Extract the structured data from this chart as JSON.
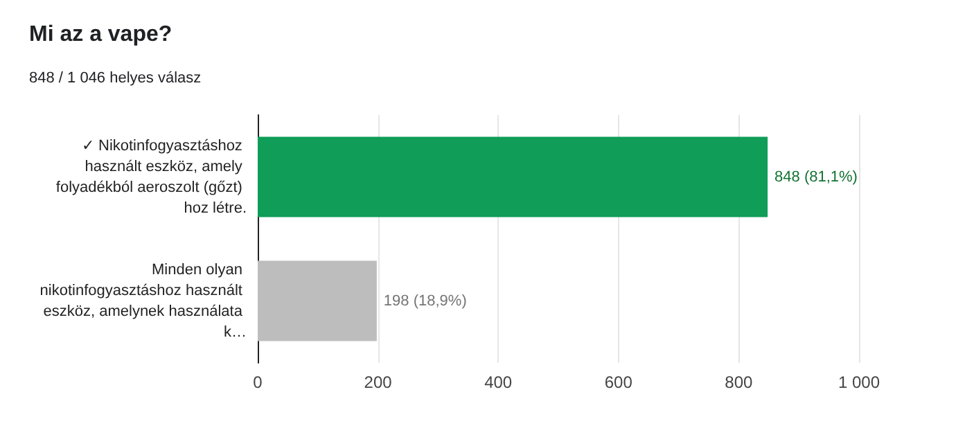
{
  "chart_data": {
    "type": "bar",
    "orientation": "horizontal",
    "title": "Mi az a vape?",
    "subtitle": "848 / 1 046 helyes válasz",
    "categories": [
      "✓ Nikotinfogyasztáshoz használt eszköz, amely folyadékból aeroszolt (gőzt) hoz létre.",
      "Minden olyan nikotinfogyasztáshoz használt eszköz, amelynek használata k…"
    ],
    "values": [
      848,
      198
    ],
    "colors": [
      "#0f9d58",
      "#bdbdbd"
    ],
    "value_labels": [
      "848 (81,1%)",
      "198 (18,9%)"
    ],
    "xlim": [
      0,
      1000
    ],
    "xticks": [
      0,
      200,
      400,
      600,
      800,
      {
        "value": 1000,
        "label": "1 000"
      }
    ],
    "grid": "x"
  }
}
